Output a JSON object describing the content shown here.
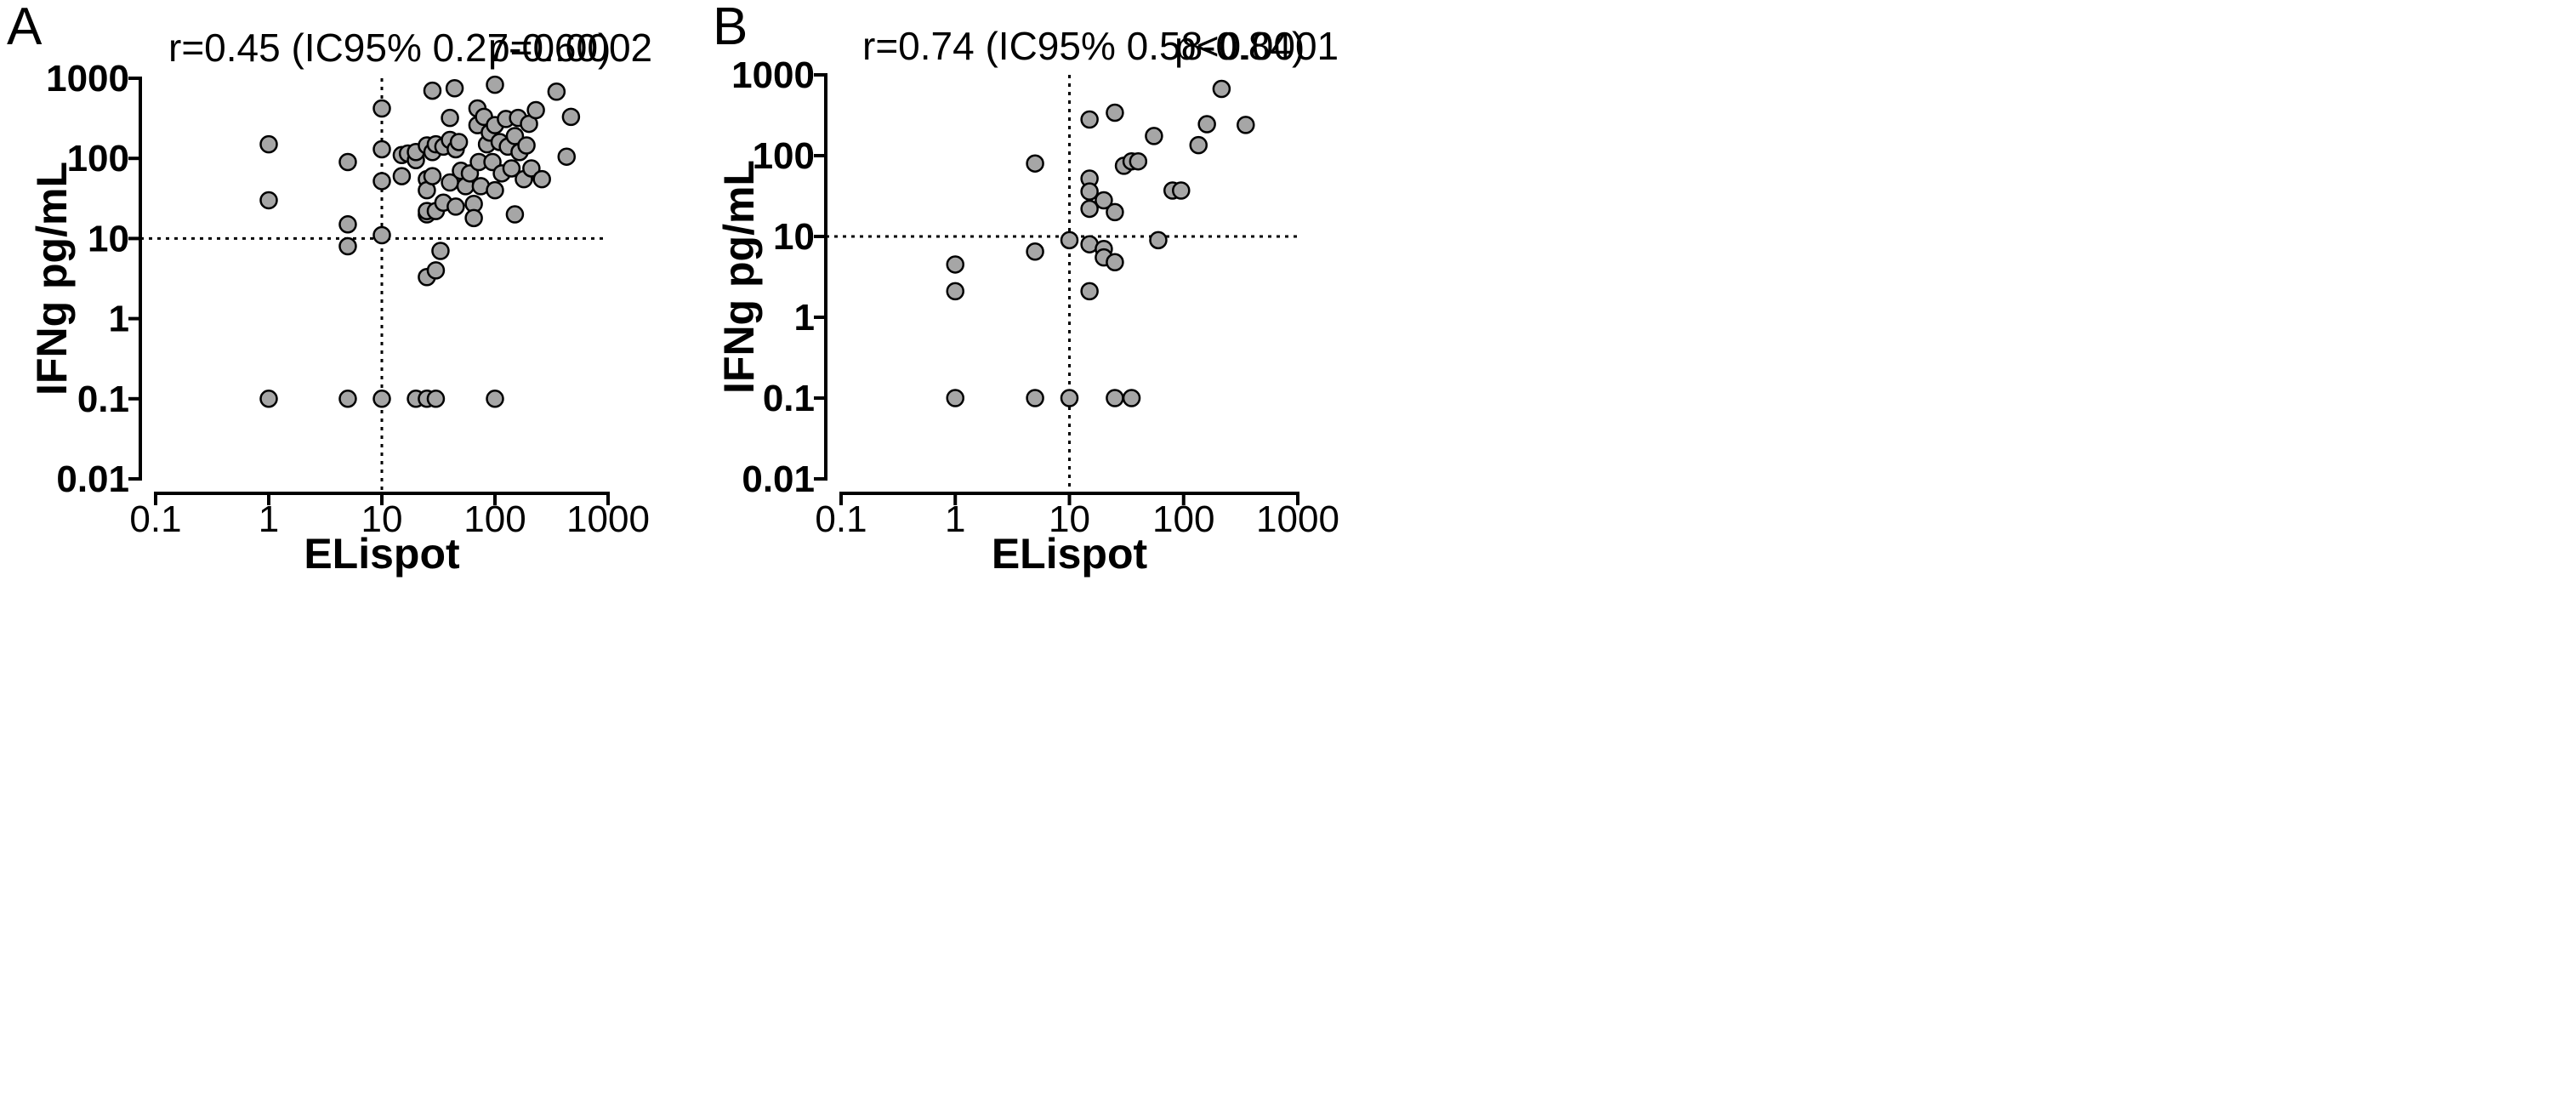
{
  "chart_data": [
    {
      "type": "scatter",
      "panel_label": "A",
      "stat_r": "r=0.45 (IC95% 0.27-0.60)",
      "stat_p": "p=0.0002",
      "xlabel": "ELispot",
      "ylabel": "IFNg pg/mL",
      "x_scale": "log",
      "y_scale": "log",
      "xlim": [
        0.1,
        1000
      ],
      "ylim": [
        0.01,
        1000
      ],
      "x_ticks": [
        "0.1",
        "1",
        "10",
        "100",
        "1000"
      ],
      "y_ticks": [
        "0.01",
        "0.1",
        "1",
        "10",
        "100",
        "1000"
      ],
      "reference_lines": {
        "x": 10,
        "y": 10
      },
      "points": [
        [
          1,
          150
        ],
        [
          1,
          30
        ],
        [
          1,
          0.1
        ],
        [
          5,
          90
        ],
        [
          5,
          15
        ],
        [
          5,
          8
        ],
        [
          5,
          0.1
        ],
        [
          10,
          420
        ],
        [
          10,
          130
        ],
        [
          10,
          52
        ],
        [
          10,
          11
        ],
        [
          10,
          0.1
        ],
        [
          15,
          110
        ],
        [
          15,
          60
        ],
        [
          17,
          115
        ],
        [
          20,
          95
        ],
        [
          20,
          120
        ],
        [
          20,
          0.1
        ],
        [
          25,
          145
        ],
        [
          25,
          55
        ],
        [
          25,
          40
        ],
        [
          25,
          20
        ],
        [
          25,
          22
        ],
        [
          25,
          3.3
        ],
        [
          25,
          0.1
        ],
        [
          28,
          700
        ],
        [
          28,
          120
        ],
        [
          28,
          60
        ],
        [
          30,
          150
        ],
        [
          30,
          22
        ],
        [
          30,
          4
        ],
        [
          30,
          0.1
        ],
        [
          33,
          7
        ],
        [
          35,
          140
        ],
        [
          35,
          28
        ],
        [
          40,
          320
        ],
        [
          40,
          170
        ],
        [
          40,
          50
        ],
        [
          44,
          750
        ],
        [
          45,
          130
        ],
        [
          45,
          25
        ],
        [
          48,
          160
        ],
        [
          50,
          70
        ],
        [
          55,
          45
        ],
        [
          60,
          65
        ],
        [
          65,
          27
        ],
        [
          65,
          18
        ],
        [
          70,
          420
        ],
        [
          70,
          260
        ],
        [
          72,
          90
        ],
        [
          75,
          45
        ],
        [
          80,
          330
        ],
        [
          85,
          150
        ],
        [
          90,
          210
        ],
        [
          95,
          90
        ],
        [
          100,
          830
        ],
        [
          100,
          260
        ],
        [
          100,
          40
        ],
        [
          100,
          0.1
        ],
        [
          110,
          160
        ],
        [
          115,
          65
        ],
        [
          125,
          310
        ],
        [
          130,
          140
        ],
        [
          140,
          75
        ],
        [
          150,
          190
        ],
        [
          150,
          20
        ],
        [
          160,
          320
        ],
        [
          165,
          120
        ],
        [
          180,
          55
        ],
        [
          190,
          145
        ],
        [
          200,
          270
        ],
        [
          210,
          75
        ],
        [
          230,
          400
        ],
        [
          260,
          55
        ],
        [
          350,
          680
        ],
        [
          430,
          105
        ],
        [
          470,
          330
        ]
      ]
    },
    {
      "type": "scatter",
      "panel_label": "B",
      "stat_r": "r=0.74 (IC95% 0.58-0.84)",
      "stat_p": "p<0.0001",
      "xlabel": "ELispot",
      "ylabel": "IFNg pg/mL",
      "x_scale": "log",
      "y_scale": "log",
      "xlim": [
        0.1,
        1000
      ],
      "ylim": [
        0.01,
        1000
      ],
      "x_ticks": [
        "0.1",
        "1",
        "10",
        "100",
        "1000"
      ],
      "y_ticks": [
        "0.01",
        "0.1",
        "1",
        "10",
        "100",
        "1000"
      ],
      "reference_lines": {
        "x": 10,
        "y": 10
      },
      "points": [
        [
          1,
          4.5
        ],
        [
          1,
          2.1
        ],
        [
          1,
          0.1
        ],
        [
          5,
          80
        ],
        [
          5,
          6.5
        ],
        [
          5,
          0.1
        ],
        [
          10,
          9
        ],
        [
          10,
          0.1
        ],
        [
          15,
          280
        ],
        [
          15,
          52
        ],
        [
          15,
          36
        ],
        [
          15,
          22
        ],
        [
          15,
          8
        ],
        [
          15,
          2.1
        ],
        [
          20,
          28
        ],
        [
          20,
          7
        ],
        [
          20,
          5.5
        ],
        [
          25,
          340
        ],
        [
          25,
          20
        ],
        [
          25,
          4.8
        ],
        [
          25,
          0.1
        ],
        [
          30,
          75
        ],
        [
          35,
          85
        ],
        [
          35,
          0.1
        ],
        [
          40,
          85
        ],
        [
          55,
          175
        ],
        [
          60,
          9
        ],
        [
          80,
          37
        ],
        [
          95,
          37
        ],
        [
          135,
          135
        ],
        [
          160,
          245
        ],
        [
          215,
          670
        ],
        [
          350,
          240
        ]
      ]
    }
  ]
}
